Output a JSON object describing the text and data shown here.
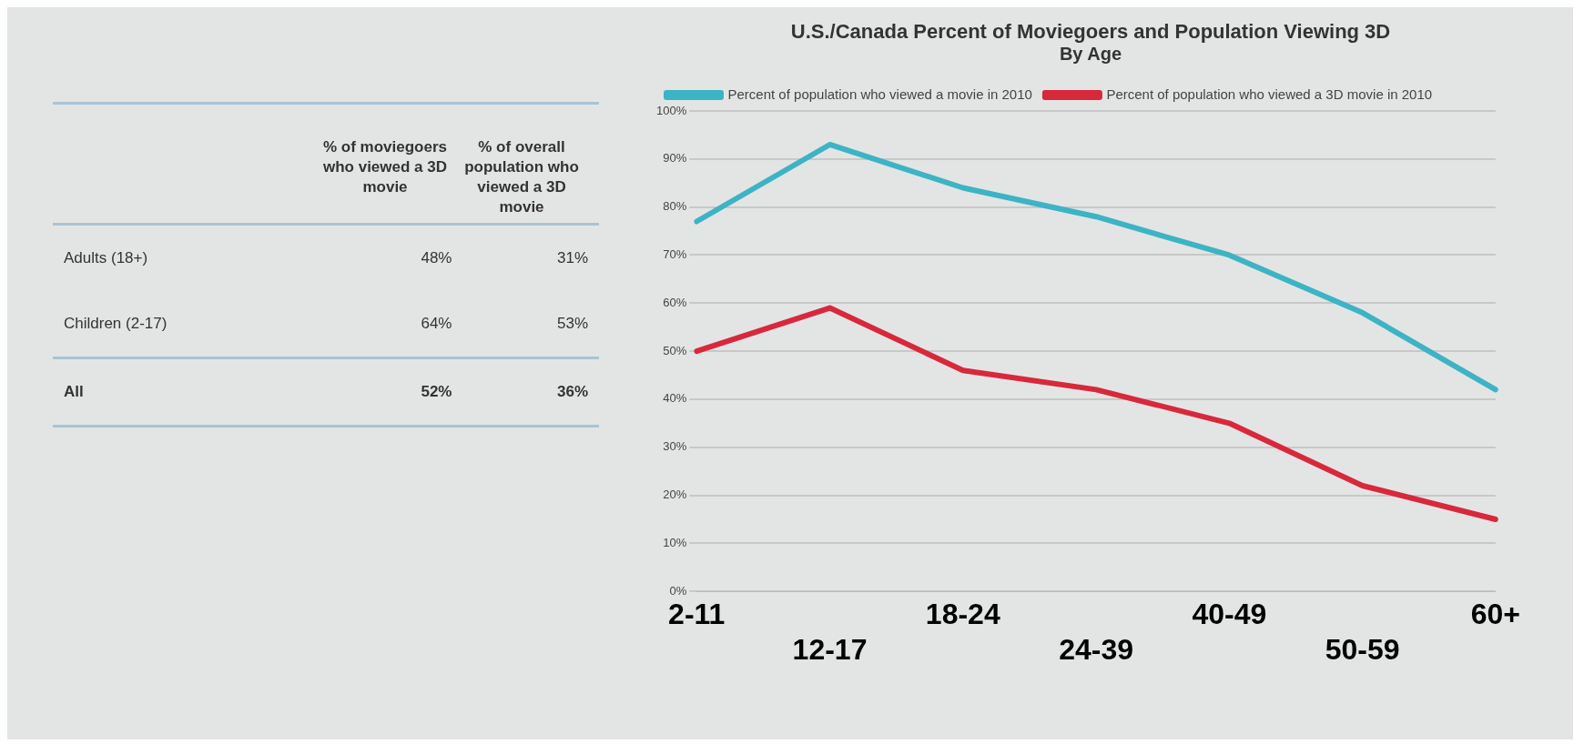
{
  "chart_data": [
    {
      "type": "other",
      "categories": [
        "% of moviegoers who viewed  a 3D movie",
        "% of overall population who viewed a 3D movie"
      ],
      "y_categories": [
        "Adults (18+)",
        "Children (2-17)",
        "All"
      ],
      "cell_labels": [
        [
          "48%",
          "31%"
        ],
        [
          "64%",
          "53%"
        ],
        [
          "52%",
          "36%"
        ]
      ]
    },
    {
      "type": "line",
      "title": "U.S./Canada Percent of Moviegoers and Population Viewing 3D",
      "subtitle": "By Age",
      "categories": [
        "2-11",
        "12-17",
        "18-24",
        "24-39",
        "40-49",
        "50-59",
        "60+"
      ],
      "series": [
        {
          "name": "Percent of population who viewed a movie in 2010",
          "color": "#3cb4c4",
          "values": [
            77,
            93,
            84,
            78,
            70,
            58,
            42
          ]
        },
        {
          "name": "Percent of population who viewed a 3D movie in 2010",
          "color": "#d8283c",
          "values": [
            50,
            59,
            46,
            42,
            35,
            22,
            15
          ]
        }
      ],
      "ylim": [
        0,
        100
      ],
      "yticks": [
        {
          "value": 0,
          "label": "0%"
        },
        {
          "value": 10,
          "label": "10%"
        },
        {
          "value": 20,
          "label": "20%"
        },
        {
          "value": 30,
          "label": "30%"
        },
        {
          "value": 40,
          "label": "40%"
        },
        {
          "value": 50,
          "label": "50%"
        },
        {
          "value": 60,
          "label": "60%"
        },
        {
          "value": 70,
          "label": "70%"
        },
        {
          "value": 80,
          "label": "80%"
        },
        {
          "value": 90,
          "label": "90%"
        },
        {
          "value": 100,
          "label": "100%"
        }
      ],
      "grid": "y",
      "legend": "top",
      "marker": "none",
      "line_style": "solid"
    }
  ]
}
